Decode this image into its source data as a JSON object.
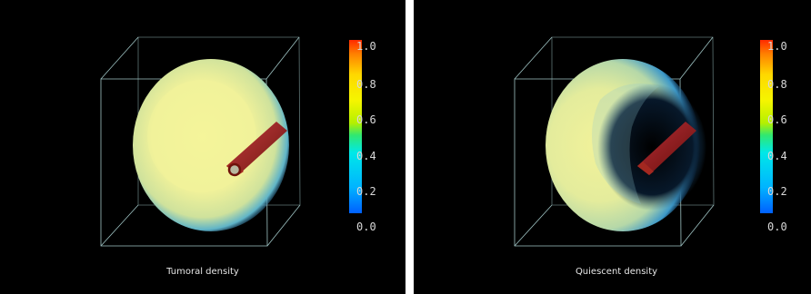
{
  "panels": [
    {
      "caption": "Tumoral density",
      "colorbar_ticks": [
        "1.0",
        "0.8",
        "0.6",
        "0.4",
        "0.2",
        "0.0"
      ]
    },
    {
      "caption": "Quiescent density",
      "colorbar_ticks": [
        "1.0",
        "0.8",
        "0.6",
        "0.4",
        "0.2",
        "0.0"
      ]
    }
  ],
  "colors": {
    "background": "#000000",
    "bounding_box": "#9fc4c4",
    "tumor_fill": "#f2f2a0",
    "vessel": "#8b1a10",
    "colormap": [
      "#ff2a00",
      "#ff8000",
      "#ffd800",
      "#f5f500",
      "#b4f000",
      "#30e870",
      "#00e8e8",
      "#00b4ff",
      "#0060ff"
    ]
  }
}
